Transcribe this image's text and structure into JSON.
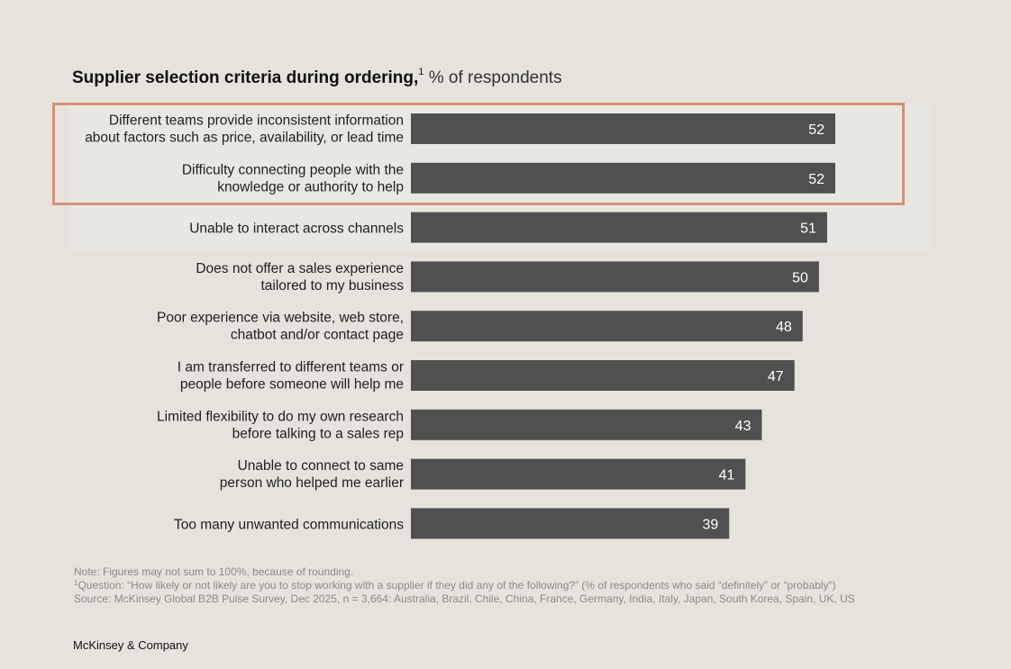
{
  "title": {
    "main": "Supplier selection criteria during ordering,",
    "footnote_mark": "1",
    "unit": "% of respondents"
  },
  "colors": {
    "background": "#e6e3dc",
    "bar": "#505050",
    "highlight_border": "#d4917b",
    "value_label": "#ffffff"
  },
  "chart_data": {
    "type": "bar",
    "orientation": "horizontal",
    "title": "Supplier selection criteria during ordering, % of respondents",
    "categories": [
      [
        "Different teams provide inconsistent information",
        "about factors such as price, availability, or lead time"
      ],
      [
        "Difficulty connecting people with the",
        "knowledge or authority to help"
      ],
      [
        "Unable to interact across channels"
      ],
      [
        "Does not offer a sales experience",
        "tailored to my business"
      ],
      [
        "Poor experience via website, web store,",
        "chatbot and/or contact page"
      ],
      [
        "I am transferred to different teams or",
        "people before someone will help me"
      ],
      [
        "Limited flexibility to do my own research",
        "before talking to a sales rep"
      ],
      [
        "Unable to connect to same",
        "person who helped me earlier"
      ],
      [
        "Too many unwanted communications"
      ]
    ],
    "values": [
      52,
      52,
      51,
      50,
      48,
      47,
      43,
      41,
      39
    ],
    "xlim": [
      0,
      52
    ],
    "highlighted_categories": [
      0,
      1
    ],
    "grid": false,
    "legend": "none"
  },
  "notes": {
    "note": "Note: Figures may not sum to 100%, because of rounding.",
    "footnote_mark": "1",
    "question": "Question: “How likely or not likely are you to stop working with a supplier if they did any of the following?” (% of respondents who said “definitely” or “probably”)",
    "source": "Source: McKinsey Global B2B Pulse Survey, Dec 2025, n = 3,664: Australia, Brazil, Chile, China, France, Germany, India, Italy, Japan, South Korea, Spain, UK, US"
  },
  "brand": "McKinsey & Company"
}
